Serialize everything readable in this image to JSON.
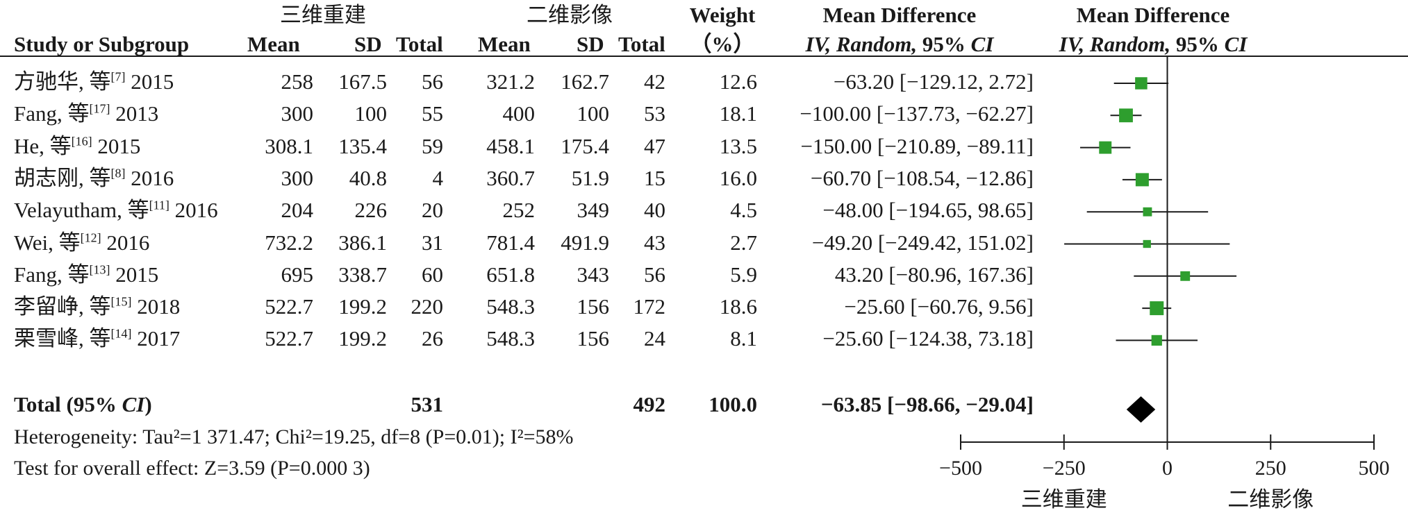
{
  "header": {
    "group1": "三维重建",
    "group2": "二维影像",
    "weight_top": "Weight",
    "weight_bottom": "（%）",
    "md_top": "Mean Difference",
    "md_bottom_ital": "IV, Random,",
    "md_bottom_rest": " 95% ",
    "md_bottom_ci": "CI",
    "plot_top": "Mean Difference",
    "col_study": "Study or Subgroup",
    "col_mean": "Mean",
    "col_sd": "SD",
    "col_total": "Total"
  },
  "studies": [
    {
      "name": "方驰华, 等",
      "ref": "[7]",
      "year": "2015",
      "m1": "258",
      "sd1": "167.5",
      "n1": "56",
      "m2": "321.2",
      "sd2": "162.7",
      "n2": "42",
      "weight": "12.6",
      "md_text": "−63.20 [−129.12, 2.72]"
    },
    {
      "name": "Fang, 等",
      "ref": "[17]",
      "year": "2013",
      "m1": "300",
      "sd1": "100",
      "n1": "55",
      "m2": "400",
      "sd2": "100",
      "n2": "53",
      "weight": "18.1",
      "md_text": "−100.00 [−137.73, −62.27]"
    },
    {
      "name": "He, 等",
      "ref": "[16]",
      "year": "2015",
      "m1": "308.1",
      "sd1": "135.4",
      "n1": "59",
      "m2": "458.1",
      "sd2": "175.4",
      "n2": "47",
      "weight": "13.5",
      "md_text": "−150.00 [−210.89, −89.11]"
    },
    {
      "name": "胡志刚, 等",
      "ref": "[8]",
      "year": "2016",
      "m1": "300",
      "sd1": "40.8",
      "n1": "4",
      "m2": "360.7",
      "sd2": "51.9",
      "n2": "15",
      "weight": "16.0",
      "md_text": "−60.70 [−108.54, −12.86]"
    },
    {
      "name": "Velayutham, 等",
      "ref": "[11]",
      "year": "2016",
      "m1": "204",
      "sd1": "226",
      "n1": "20",
      "m2": "252",
      "sd2": "349",
      "n2": "40",
      "weight": "4.5",
      "md_text": "−48.00 [−194.65, 98.65]"
    },
    {
      "name": "Wei, 等",
      "ref": "[12]",
      "year": "2016",
      "m1": "732.2",
      "sd1": "386.1",
      "n1": "31",
      "m2": "781.4",
      "sd2": "491.9",
      "n2": "43",
      "weight": "2.7",
      "md_text": "−49.20 [−249.42, 151.02]"
    },
    {
      "name": "Fang, 等",
      "ref": "[13]",
      "year": "2015",
      "m1": "695",
      "sd1": "338.7",
      "n1": "60",
      "m2": "651.8",
      "sd2": "343",
      "n2": "56",
      "weight": "5.9",
      "md_text": "43.20 [−80.96, 167.36]"
    },
    {
      "name": "李留峥, 等",
      "ref": "[15]",
      "year": "2018",
      "m1": "522.7",
      "sd1": "199.2",
      "n1": "220",
      "m2": "548.3",
      "sd2": "156",
      "n2": "172",
      "weight": "18.6",
      "md_text": "−25.60 [−60.76, 9.56]"
    },
    {
      "name": "栗雪峰, 等",
      "ref": "[14]",
      "year": "2017",
      "m1": "522.7",
      "sd1": "199.2",
      "n1": "26",
      "m2": "548.3",
      "sd2": "156",
      "n2": "24",
      "weight": "8.1",
      "md_text": "−25.60 [−124.38, 73.18]"
    }
  ],
  "total": {
    "label_a": "Total (95% ",
    "label_ci": "CI",
    "label_b": ")",
    "n1": "531",
    "n2": "492",
    "weight": "100.0",
    "md_text": "−63.85 [−98.66, −29.04]"
  },
  "footer": {
    "heterogeneity": "Heterogeneity: Tau²=1 371.47; Chi²=19.25, df=8 (P=0.01); I²=58%",
    "overall": "Test for overall effect: Z=3.59 (P=0.000 3)"
  },
  "axis_labels": {
    "left": "三维重建",
    "right": "二维影像"
  },
  "chart_data": {
    "type": "forest",
    "x_ticks": [
      "−500",
      "−250",
      "0",
      "250",
      "500"
    ],
    "x_tick_values": [
      -500,
      -250,
      0,
      250,
      500
    ],
    "xlim": [
      -500,
      500
    ],
    "reference_line": 0,
    "study_effects": [
      {
        "md": -63.2,
        "lo": -129.12,
        "hi": 2.72,
        "weight": 12.6
      },
      {
        "md": -100.0,
        "lo": -137.73,
        "hi": -62.27,
        "weight": 18.1
      },
      {
        "md": -150.0,
        "lo": -210.89,
        "hi": -89.11,
        "weight": 13.5
      },
      {
        "md": -60.7,
        "lo": -108.54,
        "hi": -12.86,
        "weight": 16.0
      },
      {
        "md": -48.0,
        "lo": -194.65,
        "hi": 98.65,
        "weight": 4.5
      },
      {
        "md": -49.2,
        "lo": -249.42,
        "hi": 151.02,
        "weight": 2.7
      },
      {
        "md": 43.2,
        "lo": -80.96,
        "hi": 167.36,
        "weight": 5.9
      },
      {
        "md": -25.6,
        "lo": -60.76,
        "hi": 9.56,
        "weight": 18.6
      },
      {
        "md": -25.6,
        "lo": -124.38,
        "hi": 73.18,
        "weight": 8.1
      }
    ],
    "pooled": {
      "md": -63.85,
      "lo": -98.66,
      "hi": -29.04
    },
    "colors": {
      "square": "#2e9e2e",
      "line": "#1a1a1a",
      "diamond": "#000000"
    }
  }
}
